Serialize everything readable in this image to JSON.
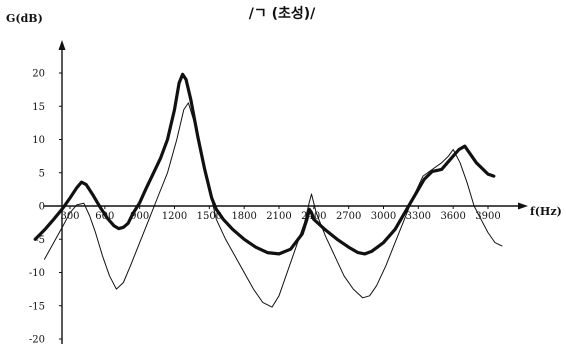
{
  "chart_data": {
    "type": "line",
    "title": "/ㄱ (초성)/",
    "ylabel": "G(dB)",
    "xlabel": "f(Hz)",
    "xlim": [
      0,
      4200
    ],
    "ylim": [
      -20,
      25
    ],
    "x_ticks": [
      300,
      600,
      900,
      1200,
      1500,
      1800,
      2100,
      2400,
      2700,
      3000,
      3300,
      3600,
      3900
    ],
    "x_tick_labels": [
      "300",
      "600",
      "900",
      "1200",
      "1500",
      "1800",
      "2100",
      "2400",
      "2700",
      "3000",
      "3300",
      "3600",
      "3900"
    ],
    "y_ticks": [
      -20,
      -15,
      -10,
      -5,
      0,
      5,
      10,
      15,
      20
    ],
    "y_tick_labels": [
      "-20",
      "-15",
      "-10",
      "-5",
      "0",
      "5",
      "10",
      "15",
      "20"
    ],
    "grid": false,
    "series": [
      {
        "style": "thick",
        "color": "#111111",
        "x": [
          0,
          80,
          160,
          240,
          300,
          360,
          400,
          440,
          500,
          560,
          620,
          680,
          720,
          760,
          800,
          840,
          900,
          960,
          1020,
          1080,
          1140,
          1200,
          1240,
          1270,
          1300,
          1340,
          1400,
          1460,
          1520,
          1560,
          1620,
          1700,
          1800,
          1900,
          2000,
          2100,
          2200,
          2300,
          2340,
          2360,
          2380,
          2400,
          2500,
          2600,
          2700,
          2780,
          2840,
          2900,
          3000,
          3100,
          3200,
          3300,
          3350,
          3420,
          3500,
          3600,
          3650,
          3700,
          3800,
          3900,
          3950
        ],
        "y": [
          -5.0,
          -3.6,
          -2.0,
          -0.3,
          1.2,
          2.8,
          3.6,
          3.2,
          1.6,
          -0.2,
          -1.8,
          -3.0,
          -3.4,
          -3.2,
          -2.6,
          -1.2,
          0.5,
          2.8,
          5.0,
          7.2,
          10.0,
          14.5,
          18.5,
          19.8,
          19.0,
          16.0,
          10.5,
          5.5,
          1.2,
          -0.5,
          -2.0,
          -3.5,
          -5.0,
          -6.2,
          -7.0,
          -7.2,
          -6.5,
          -4.2,
          -2.0,
          -0.5,
          -1.0,
          -2.0,
          -3.6,
          -5.0,
          -6.2,
          -7.0,
          -7.2,
          -6.8,
          -5.5,
          -3.5,
          -0.5,
          2.5,
          4.0,
          5.2,
          5.5,
          7.5,
          8.5,
          9.0,
          6.5,
          4.8,
          4.5
        ]
      },
      {
        "style": "thin",
        "color": "#111111",
        "x": [
          80,
          160,
          240,
          300,
          360,
          420,
          470,
          520,
          580,
          640,
          700,
          760,
          820,
          900,
          980,
          1060,
          1140,
          1220,
          1280,
          1320,
          1380,
          1440,
          1500,
          1560,
          1640,
          1720,
          1800,
          1880,
          1960,
          2040,
          2100,
          2160,
          2240,
          2320,
          2360,
          2380,
          2420,
          2500,
          2580,
          2660,
          2740,
          2820,
          2880,
          2940,
          3020,
          3100,
          3180,
          3260,
          3340,
          3420,
          3500,
          3560,
          3600,
          3660,
          3720,
          3780,
          3840,
          3900,
          3960,
          4020
        ],
        "y": [
          -8.0,
          -5.5,
          -3.0,
          -1.0,
          0.2,
          0.4,
          -1.5,
          -4.0,
          -7.5,
          -10.5,
          -12.5,
          -11.5,
          -9.0,
          -5.5,
          -2.0,
          1.5,
          5.0,
          10.0,
          14.5,
          15.5,
          12.0,
          7.0,
          2.5,
          -2.0,
          -5.0,
          -7.5,
          -10.0,
          -12.5,
          -14.5,
          -15.2,
          -13.5,
          -10.5,
          -6.5,
          -2.5,
          0.5,
          1.8,
          -1.0,
          -4.5,
          -7.5,
          -10.5,
          -12.5,
          -13.8,
          -13.5,
          -12.0,
          -9.0,
          -5.5,
          -2.0,
          1.5,
          4.5,
          5.5,
          6.5,
          7.5,
          8.5,
          6.5,
          3.5,
          0.0,
          -2.0,
          -4.0,
          -5.5,
          -6.0
        ]
      }
    ]
  }
}
